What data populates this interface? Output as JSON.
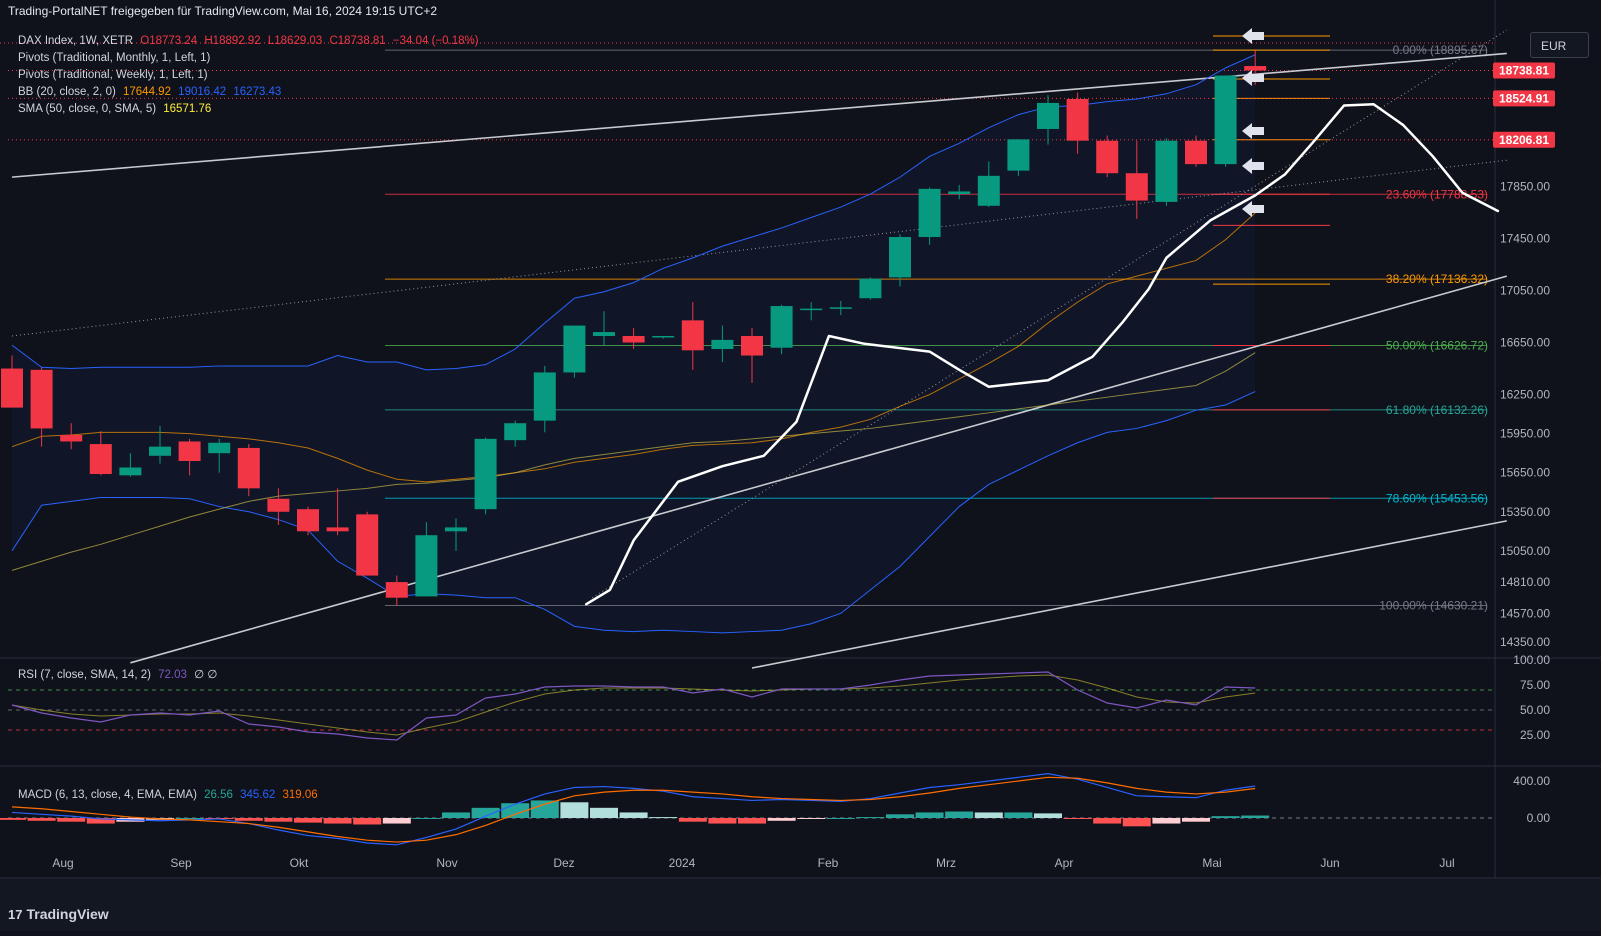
{
  "header": {
    "text": "Trading-PortalNET freigegeben für TradingView.com, Mai 16, 2024 19:15 UTC+2"
  },
  "legend": {
    "symbol": "DAX Index, 1W, XETR",
    "ohlc": {
      "o": "O18773.24",
      "h": "H18892.92",
      "l": "L18629.03",
      "c": "C18738.81",
      "chg": "−34.04 (−0.18%)"
    },
    "pivots_monthly": "Pivots (Traditional, Monthly, 1, Left, 1)",
    "pivots_weekly": "Pivots (Traditional, Weekly, 1, Left, 1)",
    "bb_label": "BB (20, close, 2, 0)",
    "bb_basis": "17644.92",
    "bb_upper": "19016.42",
    "bb_lower": "16273.43",
    "sma_label": "SMA (50, close, 0, SMA, 5)",
    "sma_value": "16571.76"
  },
  "currency_button": "EUR",
  "rsi": {
    "label": "RSI (7, close, SMA, 14, 2)",
    "value": "72.03",
    "extra": "∅ ∅"
  },
  "macd": {
    "label": "MACD (6, 13, close, 4, EMA, EMA)",
    "hist": "26.56",
    "macd": "345.62",
    "signal": "319.06"
  },
  "footer": {
    "brand": "TradingView",
    "logo_glyph": "17"
  },
  "colors": {
    "bg": "#0f121a",
    "up": "#089981",
    "down": "#f23645",
    "bb": "#2962ff",
    "sma": "#c7b84a",
    "rsi": "#7e57c2",
    "macd_line": "#2962ff",
    "signal_line": "#ff6d00",
    "axis_text": "#b2b5be"
  },
  "price_tags": [
    {
      "value": "18738.81",
      "color": "#f23645"
    },
    {
      "value": "18524.91",
      "color": "#f23645"
    },
    {
      "value": "18206.81",
      "color": "#f23645"
    }
  ],
  "price_axis": [
    "17850.00",
    "17450.00",
    "17050.00",
    "16650.00",
    "16250.00",
    "15950.00",
    "15650.00",
    "15350.00",
    "15050.00",
    "14810.00",
    "14570.00",
    "14350.00"
  ],
  "rsi_axis": [
    "100.00",
    "75.00",
    "50.00",
    "25.00"
  ],
  "macd_axis": [
    "400.00",
    "0.00"
  ],
  "time_axis": [
    "Aug",
    "Sep",
    "Okt",
    "Nov",
    "Dez",
    "2024",
    "Feb",
    "Mrz",
    "Apr",
    "Mai",
    "Jun",
    "Jul"
  ],
  "fib_labels": [
    {
      "text": "0.00% (18895.67)",
      "price": 18895.67,
      "color": "#787b86"
    },
    {
      "text": "23.60% (17788.53)",
      "price": 17788.53,
      "color": "#f23645"
    },
    {
      "text": "38.20% (17136.32)",
      "price": 17136.32,
      "color": "#ff9800"
    },
    {
      "text": "50.00% (16626.72)",
      "price": 16626.72,
      "color": "#4caf50"
    },
    {
      "text": "61.80% (16132.26)",
      "price": 16132.26,
      "color": "#26a69a"
    },
    {
      "text": "78.60% (15453.56)",
      "price": 15453.56,
      "color": "#00bcd4"
    },
    {
      "text": "100.00% (14630.21)",
      "price": 14630.21,
      "color": "#787b86"
    }
  ],
  "chart_data": {
    "type": "candlestick",
    "title": "DAX Index, 1W, XETR",
    "x_unit": "week",
    "ylim": [
      14250,
      19050
    ],
    "candles": [
      {
        "o": 16450,
        "h": 16550,
        "l": 16150,
        "c": 16150
      },
      {
        "o": 16440,
        "h": 16460,
        "l": 15850,
        "c": 15990
      },
      {
        "o": 15940,
        "h": 16030,
        "l": 15830,
        "c": 15890
      },
      {
        "o": 15870,
        "h": 15970,
        "l": 15630,
        "c": 15640
      },
      {
        "o": 15630,
        "h": 15800,
        "l": 15620,
        "c": 15690
      },
      {
        "o": 15780,
        "h": 16010,
        "l": 15720,
        "c": 15850
      },
      {
        "o": 15890,
        "h": 15910,
        "l": 15630,
        "c": 15740
      },
      {
        "o": 15800,
        "h": 15910,
        "l": 15650,
        "c": 15880
      },
      {
        "o": 15840,
        "h": 15870,
        "l": 15470,
        "c": 15530
      },
      {
        "o": 15450,
        "h": 15530,
        "l": 15250,
        "c": 15350
      },
      {
        "o": 15370,
        "h": 15390,
        "l": 15170,
        "c": 15200
      },
      {
        "o": 15230,
        "h": 15530,
        "l": 15170,
        "c": 15200
      },
      {
        "o": 15330,
        "h": 15350,
        "l": 14900,
        "c": 14860
      },
      {
        "o": 14810,
        "h": 14860,
        "l": 14630,
        "c": 14690
      },
      {
        "o": 14700,
        "h": 15270,
        "l": 14700,
        "c": 15170
      },
      {
        "o": 15200,
        "h": 15300,
        "l": 15050,
        "c": 15230
      },
      {
        "o": 15370,
        "h": 15920,
        "l": 15330,
        "c": 15910
      },
      {
        "o": 15900,
        "h": 16050,
        "l": 15850,
        "c": 16030
      },
      {
        "o": 16050,
        "h": 16470,
        "l": 15960,
        "c": 16420
      },
      {
        "o": 16420,
        "h": 16780,
        "l": 16380,
        "c": 16780
      },
      {
        "o": 16700,
        "h": 16890,
        "l": 16630,
        "c": 16730
      },
      {
        "o": 16700,
        "h": 16760,
        "l": 16600,
        "c": 16650
      },
      {
        "o": 16690,
        "h": 16700,
        "l": 16680,
        "c": 16700
      },
      {
        "o": 16820,
        "h": 16960,
        "l": 16440,
        "c": 16590
      },
      {
        "o": 16600,
        "h": 16780,
        "l": 16500,
        "c": 16670
      },
      {
        "o": 16700,
        "h": 16760,
        "l": 16340,
        "c": 16550
      },
      {
        "o": 16610,
        "h": 16940,
        "l": 16560,
        "c": 16930
      },
      {
        "o": 16900,
        "h": 16960,
        "l": 16820,
        "c": 16910
      },
      {
        "o": 16910,
        "h": 16970,
        "l": 16860,
        "c": 16920
      },
      {
        "o": 16990,
        "h": 17150,
        "l": 16980,
        "c": 17140
      },
      {
        "o": 17150,
        "h": 17480,
        "l": 17080,
        "c": 17460
      },
      {
        "o": 17460,
        "h": 17840,
        "l": 17400,
        "c": 17830
      },
      {
        "o": 17790,
        "h": 17860,
        "l": 17750,
        "c": 17810
      },
      {
        "o": 17700,
        "h": 18040,
        "l": 17690,
        "c": 17930
      },
      {
        "o": 17970,
        "h": 18210,
        "l": 17930,
        "c": 18210
      },
      {
        "o": 18290,
        "h": 18550,
        "l": 18170,
        "c": 18490
      },
      {
        "o": 18520,
        "h": 18570,
        "l": 18100,
        "c": 18200
      },
      {
        "o": 18200,
        "h": 18240,
        "l": 17920,
        "c": 17950
      },
      {
        "o": 17950,
        "h": 18200,
        "l": 17600,
        "c": 17740
      },
      {
        "o": 17730,
        "h": 18220,
        "l": 17700,
        "c": 18200
      },
      {
        "o": 18200,
        "h": 18240,
        "l": 18000,
        "c": 18020
      },
      {
        "o": 18020,
        "h": 18700,
        "l": 18000,
        "c": 18700
      },
      {
        "o": 18773.24,
        "h": 18892.92,
        "l": 18629.03,
        "c": 18738.81
      }
    ],
    "bollinger": {
      "upper": [
        16630,
        16460,
        16450,
        16460,
        16460,
        16460,
        16460,
        16470,
        16470,
        16470,
        16470,
        16550,
        16500,
        16500,
        16440,
        16450,
        16480,
        16600,
        16800,
        16990,
        17040,
        17110,
        17220,
        17300,
        17390,
        17460,
        17530,
        17610,
        17690,
        17790,
        17920,
        18080,
        18180,
        18300,
        18400,
        18460,
        18470,
        18500,
        18520,
        18560,
        18630,
        18760,
        18860
      ],
      "basis": [
        15850,
        15930,
        15940,
        15960,
        15960,
        15960,
        15950,
        15930,
        15910,
        15880,
        15840,
        15760,
        15670,
        15600,
        15580,
        15600,
        15620,
        15650,
        15680,
        15730,
        15760,
        15790,
        15830,
        15860,
        15870,
        15880,
        15910,
        15960,
        16000,
        16060,
        16160,
        16250,
        16370,
        16490,
        16620,
        16800,
        16960,
        17100,
        17160,
        17220,
        17280,
        17440,
        17644.92
      ],
      "lower": [
        15050,
        15400,
        15430,
        15460,
        15460,
        15460,
        15450,
        15390,
        15350,
        15290,
        15210,
        14970,
        14840,
        14700,
        14720,
        14710,
        14690,
        14690,
        14600,
        14470,
        14440,
        14430,
        14440,
        14430,
        14420,
        14430,
        14440,
        14490,
        14570,
        14750,
        14930,
        15160,
        15390,
        15560,
        15670,
        15780,
        15880,
        15960,
        15990,
        16050,
        16130,
        16170,
        16273.43
      ]
    },
    "sma": [
      14900,
      14970,
      15040,
      15100,
      15170,
      15240,
      15310,
      15370,
      15430,
      15470,
      15490,
      15510,
      15530,
      15560,
      15570,
      15590,
      15610,
      15650,
      15710,
      15760,
      15790,
      15820,
      15850,
      15880,
      15890,
      15910,
      15930,
      15950,
      15970,
      15990,
      16020,
      16050,
      16080,
      16110,
      16140,
      16170,
      16200,
      16230,
      16260,
      16290,
      16320,
      16430,
      16571.76
    ],
    "freehand_curve": [
      [
        19.4,
        14640
      ],
      [
        20.2,
        14750
      ],
      [
        21,
        15130
      ],
      [
        22.5,
        15580
      ],
      [
        24,
        15700
      ],
      [
        25.4,
        15780
      ],
      [
        26.5,
        16040
      ],
      [
        27.6,
        16700
      ],
      [
        28.8,
        16640
      ],
      [
        31,
        16580
      ],
      [
        32,
        16440
      ],
      [
        33,
        16310
      ],
      [
        35,
        16360
      ],
      [
        36.5,
        16540
      ],
      [
        37.5,
        16800
      ],
      [
        38.4,
        17060
      ],
      [
        39,
        17300
      ],
      [
        40.5,
        17590
      ],
      [
        42,
        17780
      ],
      [
        43,
        17940
      ],
      [
        44,
        18200
      ],
      [
        45,
        18470
      ],
      [
        46,
        18480
      ],
      [
        47,
        18320
      ],
      [
        48,
        18080
      ],
      [
        49,
        17800
      ],
      [
        50.2,
        17660
      ]
    ],
    "trendlines": [
      {
        "style": "solid",
        "x": [
          0,
          50.5
        ],
        "y": [
          17920,
          18870
        ]
      },
      {
        "style": "solid",
        "x": [
          4,
          50.5
        ],
        "y": [
          14190,
          17160
        ]
      },
      {
        "style": "solid",
        "x": [
          25,
          50.5
        ],
        "y": [
          14150,
          15280
        ]
      },
      {
        "style": "dotted",
        "x": [
          0,
          50.5
        ],
        "y": [
          16700,
          18050
        ]
      },
      {
        "style": "dotted",
        "x": [
          19.6,
          50.5
        ],
        "y": [
          14690,
          19050
        ]
      }
    ],
    "monthly_pivots": [
      18895.67,
      18524.91,
      18206.81,
      17788.53,
      17550,
      17136.32,
      16626.72,
      16132.26,
      15453.56
    ],
    "rsi": [
      55,
      47,
      42,
      38,
      45,
      47,
      45,
      49,
      36,
      33,
      28,
      26,
      22,
      20,
      42,
      45,
      62,
      66,
      73,
      74,
      74,
      73,
      73,
      67,
      71,
      63,
      71,
      71,
      71,
      75,
      80,
      84,
      85,
      86,
      87,
      88,
      70,
      57,
      52,
      60,
      55,
      73,
      72.03
    ],
    "rsi_ma": [
      55,
      50,
      46,
      44,
      45,
      46,
      46,
      47,
      44,
      40,
      36,
      32,
      28,
      25,
      32,
      38,
      48,
      58,
      66,
      70,
      72,
      72,
      72,
      71,
      70,
      69,
      70,
      71,
      71,
      72,
      74,
      77,
      80,
      82,
      84,
      85,
      80,
      72,
      63,
      58,
      57,
      63,
      67
    ],
    "macd_line": [
      60,
      40,
      20,
      -10,
      -20,
      -30,
      -20,
      -10,
      -60,
      -130,
      -190,
      -220,
      -270,
      -290,
      -210,
      -120,
      20,
      150,
      260,
      330,
      340,
      320,
      290,
      230,
      210,
      190,
      200,
      190,
      180,
      210,
      270,
      330,
      360,
      400,
      440,
      480,
      420,
      330,
      240,
      230,
      220,
      300,
      345.62
    ],
    "macd_signal": [
      120,
      100,
      70,
      40,
      10,
      -10,
      -20,
      -40,
      -60,
      -100,
      -150,
      -200,
      -240,
      -260,
      -240,
      -180,
      -80,
      40,
      150,
      240,
      280,
      300,
      300,
      280,
      260,
      230,
      210,
      200,
      190,
      200,
      230,
      270,
      320,
      360,
      400,
      440,
      430,
      380,
      320,
      280,
      260,
      280,
      319.06
    ],
    "macd_hist": [
      -20,
      -30,
      -40,
      -60,
      -40,
      -20,
      0,
      -10,
      -30,
      -40,
      -50,
      -60,
      -70,
      -60,
      0,
      60,
      110,
      160,
      190,
      170,
      110,
      60,
      10,
      -40,
      -60,
      -60,
      -30,
      -10,
      0,
      10,
      40,
      60,
      70,
      60,
      60,
      50,
      -10,
      -60,
      -90,
      -60,
      -40,
      20,
      26.56
    ]
  }
}
